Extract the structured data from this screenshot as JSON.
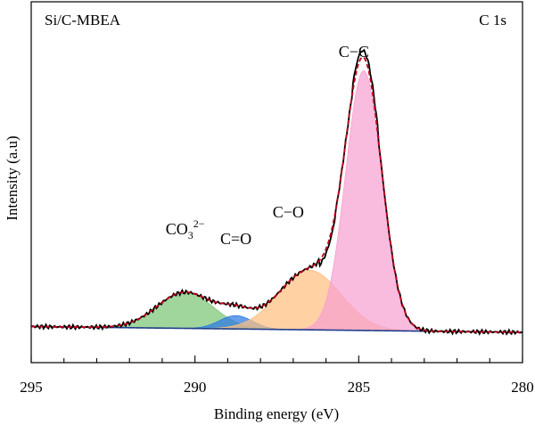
{
  "chart_data": {
    "type": "area",
    "xlabel": "Binding energy (eV)",
    "ylabel": "Intensity (a.u)",
    "sample_label": "Si/C-MBEA",
    "region_label": "C 1s",
    "xlim": [
      295,
      280
    ],
    "x_reversed": true,
    "x_ticks": [
      "295",
      "290",
      "285",
      "280"
    ],
    "x_tick_values": [
      295,
      290,
      285,
      280
    ],
    "ylim": [
      0,
      100
    ],
    "baseline": {
      "start": 10.0,
      "end": 8.4
    },
    "components": [
      {
        "label_text": "CO",
        "label_sub": "3",
        "label_sup": "2−",
        "center": 290.3,
        "height": 10.0,
        "width": 0.85,
        "color": "#7cc576"
      },
      {
        "label_text": "C=O",
        "center": 288.75,
        "height": 3.7,
        "width": 0.5,
        "color": "#2b78e4"
      },
      {
        "label_text": "C−O",
        "center": 286.5,
        "height": 16.5,
        "width": 0.95,
        "color": "#ffbf80"
      },
      {
        "label_text": "C−C",
        "center": 284.85,
        "height": 72.0,
        "width": 0.55,
        "color": "#f7a1d1"
      }
    ],
    "series": [
      {
        "name": "raw",
        "style": "solid",
        "color": "#000000"
      },
      {
        "name": "fit",
        "style": "dashed",
        "color": "#c0001a"
      }
    ]
  }
}
